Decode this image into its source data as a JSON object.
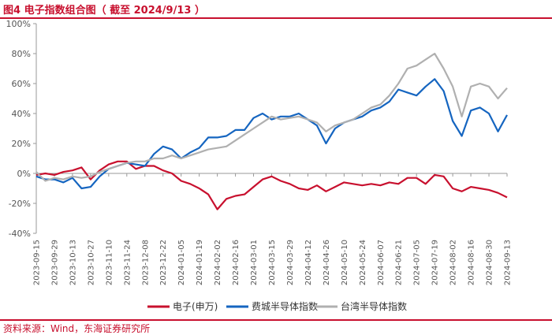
{
  "title": "图4  电子指数组合图（ 截至 2024/9/13 ）",
  "source": "资料来源：Wind，东海证券研究所",
  "colors": {
    "brand_red": "#c8102e"
  },
  "chart_data": {
    "type": "line",
    "title": "",
    "xlabel": "",
    "ylabel": "",
    "ylim": [
      -40,
      100
    ],
    "y_ticks": [
      "100%",
      "80%",
      "60%",
      "40%",
      "20%",
      "0%",
      "-20%",
      "-40%"
    ],
    "x_ticks": [
      "2023-09-15",
      "2023-09-29",
      "2023-10-13",
      "2023-10-27",
      "2023-11-10",
      "2023-11-24",
      "2023-12-08",
      "2023-12-22",
      "2024-01-05",
      "2024-01-19",
      "2024-02-02",
      "2024-02-16",
      "2024-03-01",
      "2024-03-15",
      "2024-03-29",
      "2024-04-12",
      "2024-04-26",
      "2024-05-10",
      "2024-05-24",
      "2024-06-07",
      "2024-06-21",
      "2024-07-05",
      "2024-07-19",
      "2024-08-02",
      "2024-08-16",
      "2024-08-30",
      "2024-09-13"
    ],
    "grid": false,
    "legend_position": "bottom",
    "series": [
      {
        "name": "电子(申万)",
        "color": "#c8102e",
        "x": [
          "2023-09-15",
          "2023-09-22",
          "2023-09-29",
          "2023-10-06",
          "2023-10-13",
          "2023-10-20",
          "2023-10-27",
          "2023-11-03",
          "2023-11-10",
          "2023-11-17",
          "2023-11-24",
          "2023-12-01",
          "2023-12-08",
          "2023-12-15",
          "2023-12-22",
          "2023-12-29",
          "2024-01-05",
          "2024-01-12",
          "2024-01-19",
          "2024-01-26",
          "2024-02-02",
          "2024-02-09",
          "2024-02-16",
          "2024-02-23",
          "2024-03-01",
          "2024-03-08",
          "2024-03-15",
          "2024-03-22",
          "2024-03-29",
          "2024-04-05",
          "2024-04-12",
          "2024-04-19",
          "2024-04-26",
          "2024-05-03",
          "2024-05-10",
          "2024-05-17",
          "2024-05-24",
          "2024-05-31",
          "2024-06-07",
          "2024-06-14",
          "2024-06-21",
          "2024-06-28",
          "2024-07-05",
          "2024-07-12",
          "2024-07-19",
          "2024-07-26",
          "2024-08-02",
          "2024-08-09",
          "2024-08-16",
          "2024-08-23",
          "2024-08-30",
          "2024-09-06",
          "2024-09-13"
        ],
        "values": [
          -1,
          0,
          -1,
          1,
          2,
          4,
          -4,
          2,
          6,
          8,
          8,
          3,
          5,
          5,
          2,
          0,
          -5,
          -7,
          -10,
          -14,
          -24,
          -17,
          -15,
          -14,
          -9,
          -4,
          -2,
          -5,
          -7,
          -10,
          -11,
          -8,
          -12,
          -9,
          -6,
          -7,
          -8,
          -7,
          -8,
          -6,
          -7,
          -3,
          -3,
          -7,
          -1,
          -2,
          -10,
          -12,
          -9,
          -10,
          -11,
          -13,
          -16
        ]
      },
      {
        "name": "费城半导体指数",
        "color": "#1565c0",
        "x": [
          "2023-09-15",
          "2023-09-22",
          "2023-09-29",
          "2023-10-06",
          "2023-10-13",
          "2023-10-20",
          "2023-10-27",
          "2023-11-03",
          "2023-11-10",
          "2023-11-17",
          "2023-11-24",
          "2023-12-01",
          "2023-12-08",
          "2023-12-15",
          "2023-12-22",
          "2023-12-29",
          "2024-01-05",
          "2024-01-12",
          "2024-01-19",
          "2024-01-26",
          "2024-02-02",
          "2024-02-09",
          "2024-02-16",
          "2024-02-23",
          "2024-03-01",
          "2024-03-08",
          "2024-03-15",
          "2024-03-22",
          "2024-03-29",
          "2024-04-05",
          "2024-04-12",
          "2024-04-19",
          "2024-04-26",
          "2024-05-03",
          "2024-05-10",
          "2024-05-17",
          "2024-05-24",
          "2024-05-31",
          "2024-06-07",
          "2024-06-14",
          "2024-06-21",
          "2024-06-28",
          "2024-07-05",
          "2024-07-12",
          "2024-07-19",
          "2024-07-26",
          "2024-08-02",
          "2024-08-09",
          "2024-08-16",
          "2024-08-23",
          "2024-08-30",
          "2024-09-06",
          "2024-09-13"
        ],
        "values": [
          -2,
          -4,
          -4,
          -6,
          -3,
          -10,
          -9,
          -2,
          3,
          5,
          7,
          6,
          5,
          13,
          18,
          16,
          10,
          14,
          17,
          24,
          24,
          25,
          29,
          29,
          37,
          40,
          36,
          38,
          38,
          40,
          36,
          32,
          20,
          30,
          34,
          36,
          38,
          42,
          44,
          48,
          56,
          54,
          52,
          58,
          63,
          55,
          35,
          25,
          42,
          44,
          40,
          28,
          39
        ]
      },
      {
        "name": "台湾半导体指数",
        "color": "#b0b0b0",
        "x": [
          "2023-09-15",
          "2023-09-22",
          "2023-09-29",
          "2023-10-06",
          "2023-10-13",
          "2023-10-20",
          "2023-10-27",
          "2023-11-03",
          "2023-11-10",
          "2023-11-17",
          "2023-11-24",
          "2023-12-01",
          "2023-12-08",
          "2023-12-15",
          "2023-12-22",
          "2023-12-29",
          "2024-01-05",
          "2024-01-12",
          "2024-01-19",
          "2024-01-26",
          "2024-02-02",
          "2024-02-09",
          "2024-02-16",
          "2024-02-23",
          "2024-03-01",
          "2024-03-08",
          "2024-03-15",
          "2024-03-22",
          "2024-03-29",
          "2024-04-05",
          "2024-04-12",
          "2024-04-19",
          "2024-04-26",
          "2024-05-03",
          "2024-05-10",
          "2024-05-17",
          "2024-05-24",
          "2024-05-31",
          "2024-06-07",
          "2024-06-14",
          "2024-06-21",
          "2024-06-28",
          "2024-07-05",
          "2024-07-12",
          "2024-07-19",
          "2024-07-26",
          "2024-08-02",
          "2024-08-09",
          "2024-08-16",
          "2024-08-23",
          "2024-08-30",
          "2024-09-06",
          "2024-09-13"
        ],
        "values": [
          1,
          -5,
          -3,
          -4,
          -2,
          -3,
          -2,
          1,
          3,
          5,
          7,
          8,
          8,
          10,
          10,
          12,
          10,
          12,
          14,
          16,
          17,
          18,
          22,
          26,
          30,
          34,
          38,
          36,
          37,
          38,
          36,
          34,
          28,
          32,
          34,
          36,
          40,
          44,
          46,
          52,
          60,
          70,
          72,
          76,
          80,
          70,
          58,
          38,
          58,
          60,
          58,
          50,
          57
        ]
      }
    ]
  }
}
